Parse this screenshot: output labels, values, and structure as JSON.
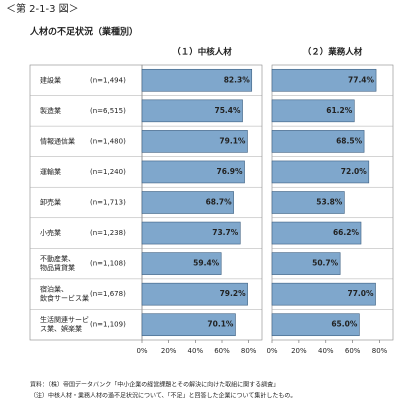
{
  "header": "＜第 2-1-3 図＞",
  "title": "人材の不足状況（業種別）",
  "notes": [
    "資料：（株）帝国データバンク「中小企業の経営課題とその解決に向けた取組に関する調査」",
    "（注）中核人材・業務人材の過不足状況について、「不足」と回答した企業について集計したもの。"
  ],
  "chart_data": [
    {
      "type": "bar",
      "orientation": "horizontal",
      "title": "（１）中核人材",
      "categories": [
        "建設業",
        "製造業",
        "情報通信業",
        "運輸業",
        "卸売業",
        "小売業",
        "不動産業、\n物品賃貸業",
        "宿泊業、\n飲食サービス業",
        "生活関連サービ\nス業、娯楽業"
      ],
      "category_counts": [
        "(n=1,494)",
        "(n=6,515)",
        "(n=1,480)",
        "(n=1,240)",
        "(n=1,713)",
        "(n=1,238)",
        "(n=1,108)",
        "(n=1,678)",
        "(n=1,109)"
      ],
      "values": [
        82.3,
        75.4,
        79.1,
        76.9,
        68.7,
        73.7,
        59.4,
        79.2,
        70.1
      ],
      "value_labels": [
        "82.3%",
        "75.4%",
        "79.1%",
        "76.9%",
        "68.7%",
        "73.7%",
        "59.4%",
        "79.2%",
        "70.1%"
      ],
      "color": "#7fa7cc",
      "xlim": [
        0,
        90
      ],
      "xticks": [
        {
          "value": 0,
          "label": "0%"
        },
        {
          "value": 20,
          "label": "20%"
        },
        {
          "value": 40,
          "label": "40%"
        },
        {
          "value": 60,
          "label": "60%"
        },
        {
          "value": 80,
          "label": "80%"
        }
      ]
    },
    {
      "type": "bar",
      "orientation": "horizontal",
      "title": "（２）業務人材",
      "values": [
        77.4,
        61.2,
        68.5,
        72.0,
        53.8,
        66.2,
        50.7,
        77.0,
        65.0
      ],
      "value_labels": [
        "77.4%",
        "61.2%",
        "68.5%",
        "72.0%",
        "53.8%",
        "66.2%",
        "50.7%",
        "77.0%",
        "65.0%"
      ],
      "color": "#7fa7cc",
      "xlim": [
        0,
        90
      ],
      "xticks": [
        {
          "value": 0,
          "label": "0%"
        },
        {
          "value": 20,
          "label": "20%"
        },
        {
          "value": 40,
          "label": "40%"
        },
        {
          "value": 60,
          "label": "60%"
        },
        {
          "value": 80,
          "label": "80%"
        }
      ]
    }
  ]
}
